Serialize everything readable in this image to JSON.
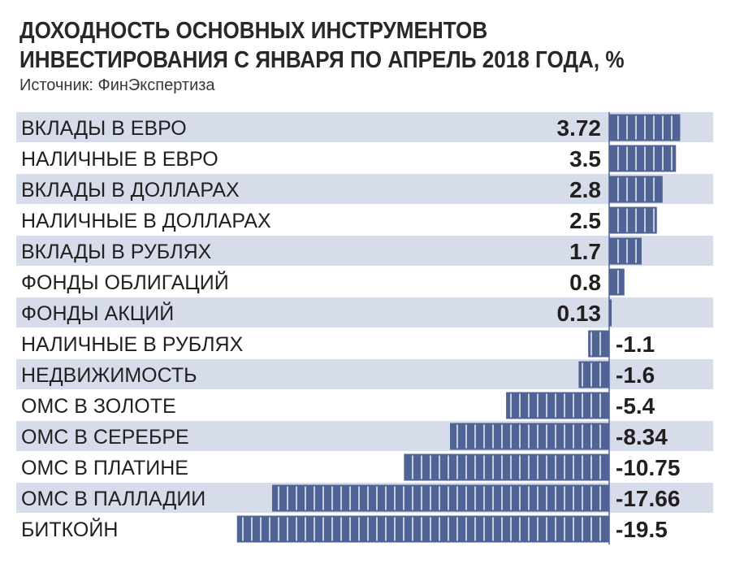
{
  "title_line1": "ДОХОДНОСТЬ ОСНОВНЫХ ИНСТРУМЕНТОВ",
  "title_line2": "ИНВЕСТИРОВАНИЯ С ЯНВАРЯ ПО АПРЕЛЬ 2018 ГОДА, %",
  "source": "Источник: ФинЭкспертиза",
  "colors": {
    "bar": "#4f6495",
    "band": "#d6dcea",
    "text": "#231f20"
  },
  "chart_data": {
    "type": "bar",
    "orientation": "horizontal",
    "title": "ДОХОДНОСТЬ ОСНОВНЫХ ИНСТРУМЕНТОВ ИНВЕСТИРОВАНИЯ С ЯНВАРЯ ПО АПРЕЛЬ 2018 ГОДА, %",
    "categories": [
      "ВКЛАДЫ В ЕВРО",
      "НАЛИЧНЫЕ В ЕВРО",
      "ВКЛАДЫ В ДОЛЛАРАХ",
      "НАЛИЧНЫЕ В ДОЛЛАРАХ",
      "ВКЛАДЫ В РУБЛЯХ",
      "ФОНДЫ ОБЛИГАЦИЙ",
      "ФОНДЫ АКЦИЙ",
      "НАЛИЧНЫЕ В РУБЛЯХ",
      "НЕДВИЖИМОСТЬ",
      "ОМС В ЗОЛОТЕ",
      "ОМС В СЕРЕБРЕ",
      "ОМС В ПЛАТИНЕ",
      "ОМС В ПАЛЛАДИИ",
      "БИТКОЙН"
    ],
    "values": [
      3.72,
      3.5,
      2.8,
      2.5,
      1.7,
      0.8,
      0.13,
      -1.1,
      -1.6,
      -5.4,
      -8.34,
      -10.75,
      -17.66,
      -19.5
    ],
    "value_labels": [
      "3.72",
      "3.5",
      "2.8",
      "2.5",
      "1.7",
      "0.8",
      "0.13",
      "-1.1",
      "-1.6",
      "-5.4",
      "-8.34",
      "-10.75",
      "-17.66",
      "-19.5"
    ],
    "xlim": [
      -19.5,
      5
    ],
    "grid": false,
    "legend": "none",
    "alternating_row_bands": true
  }
}
